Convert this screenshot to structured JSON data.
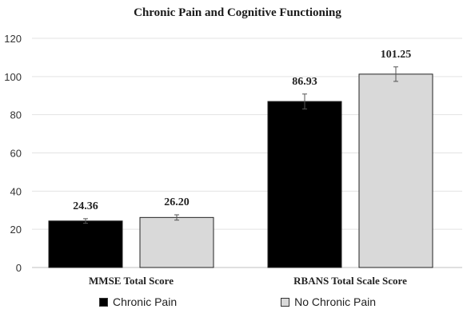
{
  "chart_data": {
    "type": "bar",
    "title": "Chronic Pain and Cognitive Functioning",
    "xlabel": "",
    "ylabel": "",
    "ylim": [
      0,
      120
    ],
    "yticks": [
      0,
      20,
      40,
      60,
      80,
      100,
      120
    ],
    "categories": [
      "MMSE Total Score",
      "RBANS Total Scale Score"
    ],
    "series": [
      {
        "name": "Chronic Pain",
        "color": "#000000",
        "values": [
          24.36,
          86.93
        ],
        "labels": [
          "24.36",
          "86.93"
        ],
        "error": [
          1.2,
          3.9
        ]
      },
      {
        "name": "No Chronic Pain",
        "color": "#d9d9d9",
        "values": [
          26.2,
          101.25
        ],
        "labels": [
          "26.20",
          "101.25"
        ],
        "error": [
          1.4,
          3.8
        ]
      }
    ],
    "grid": "horizontal",
    "legend_position": "bottom",
    "error_bars": true
  }
}
